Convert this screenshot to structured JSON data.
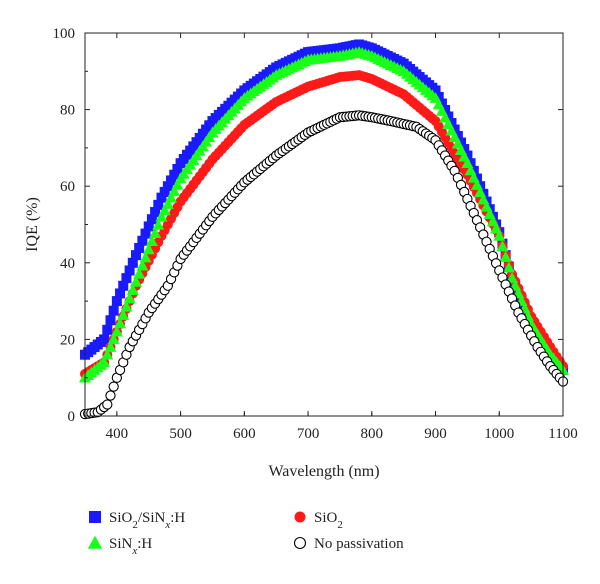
{
  "chart_data": {
    "type": "scatter",
    "xlabel": "Wavelength (nm)",
    "ylabel": "IQE (%)",
    "xlim": [
      350,
      1100
    ],
    "ylim": [
      0,
      100
    ],
    "xticks": [
      400,
      500,
      600,
      700,
      800,
      900,
      1000,
      1100
    ],
    "yticks": [
      0,
      20,
      40,
      60,
      80,
      100
    ],
    "xtick_labels": [
      "400",
      "500",
      "600",
      "700",
      "800",
      "900",
      "1000",
      "1100"
    ],
    "ytick_labels": [
      "0",
      "20",
      "40",
      "60",
      "80",
      "100"
    ],
    "grid": false,
    "legend_position": "below",
    "series": [
      {
        "name": "SiO2/SiNx:H",
        "legend_parts": [
          {
            "text": "SiO",
            "sub": false,
            "italic": false
          },
          {
            "text": "2",
            "sub": true,
            "italic": false
          },
          {
            "text": "/SiN",
            "sub": false,
            "italic": false
          },
          {
            "text": "x",
            "sub": true,
            "italic": true
          },
          {
            "text": ":H",
            "sub": false,
            "italic": false
          }
        ],
        "marker": "square",
        "color": "#1a1aff",
        "filled": true,
        "points": [
          [
            350,
            16
          ],
          [
            380,
            20
          ],
          [
            400,
            30
          ],
          [
            430,
            42
          ],
          [
            470,
            57
          ],
          [
            500,
            66
          ],
          [
            550,
            77
          ],
          [
            600,
            85
          ],
          [
            650,
            91
          ],
          [
            700,
            95
          ],
          [
            750,
            96
          ],
          [
            780,
            97
          ],
          [
            800,
            96
          ],
          [
            850,
            92
          ],
          [
            900,
            85
          ],
          [
            950,
            68
          ],
          [
            1000,
            48
          ],
          [
            1020,
            36
          ],
          [
            1050,
            24
          ],
          [
            1080,
            16
          ],
          [
            1100,
            12
          ]
        ]
      },
      {
        "name": "SiO2",
        "legend_parts": [
          {
            "text": "SiO",
            "sub": false,
            "italic": false
          },
          {
            "text": "2",
            "sub": true,
            "italic": false
          }
        ],
        "marker": "circle",
        "color": "#ff1a1a",
        "filled": true,
        "points": [
          [
            350,
            11
          ],
          [
            380,
            14
          ],
          [
            400,
            22
          ],
          [
            430,
            34
          ],
          [
            470,
            47
          ],
          [
            500,
            56
          ],
          [
            550,
            67
          ],
          [
            600,
            76
          ],
          [
            650,
            82
          ],
          [
            700,
            86
          ],
          [
            750,
            88.5
          ],
          [
            780,
            89
          ],
          [
            800,
            88
          ],
          [
            850,
            84
          ],
          [
            900,
            77
          ],
          [
            950,
            63
          ],
          [
            1000,
            47
          ],
          [
            1020,
            37
          ],
          [
            1050,
            26
          ],
          [
            1080,
            18
          ],
          [
            1100,
            13
          ]
        ]
      },
      {
        "name": "SiNx:H",
        "legend_parts": [
          {
            "text": "SiN",
            "sub": false,
            "italic": false
          },
          {
            "text": "x",
            "sub": true,
            "italic": true
          },
          {
            "text": ":H",
            "sub": false,
            "italic": false
          }
        ],
        "marker": "triangle",
        "color": "#1aff1a",
        "filled": true,
        "points": [
          [
            350,
            10
          ],
          [
            380,
            14
          ],
          [
            400,
            22
          ],
          [
            430,
            35
          ],
          [
            470,
            52
          ],
          [
            500,
            62
          ],
          [
            550,
            74
          ],
          [
            600,
            83
          ],
          [
            650,
            89
          ],
          [
            700,
            93
          ],
          [
            750,
            94
          ],
          [
            780,
            95
          ],
          [
            800,
            94
          ],
          [
            850,
            90
          ],
          [
            900,
            83
          ],
          [
            950,
            66
          ],
          [
            1000,
            47
          ],
          [
            1020,
            36
          ],
          [
            1050,
            24
          ],
          [
            1080,
            16
          ],
          [
            1100,
            12
          ]
        ]
      },
      {
        "name": "No passivation",
        "legend_parts": [
          {
            "text": "No passivation",
            "sub": false,
            "italic": false
          }
        ],
        "marker": "circle",
        "color": "#000000",
        "filled": false,
        "points": [
          [
            350,
            0.5
          ],
          [
            370,
            1
          ],
          [
            385,
            3
          ],
          [
            400,
            10
          ],
          [
            420,
            18
          ],
          [
            450,
            27
          ],
          [
            480,
            34
          ],
          [
            500,
            41
          ],
          [
            550,
            52
          ],
          [
            600,
            61
          ],
          [
            650,
            68
          ],
          [
            700,
            74
          ],
          [
            750,
            78
          ],
          [
            780,
            78.5
          ],
          [
            800,
            78
          ],
          [
            830,
            77
          ],
          [
            870,
            75.5
          ],
          [
            900,
            72
          ],
          [
            930,
            64
          ],
          [
            960,
            53
          ],
          [
            1000,
            38
          ],
          [
            1030,
            27
          ],
          [
            1060,
            18
          ],
          [
            1080,
            13
          ],
          [
            1100,
            9
          ]
        ]
      }
    ]
  }
}
